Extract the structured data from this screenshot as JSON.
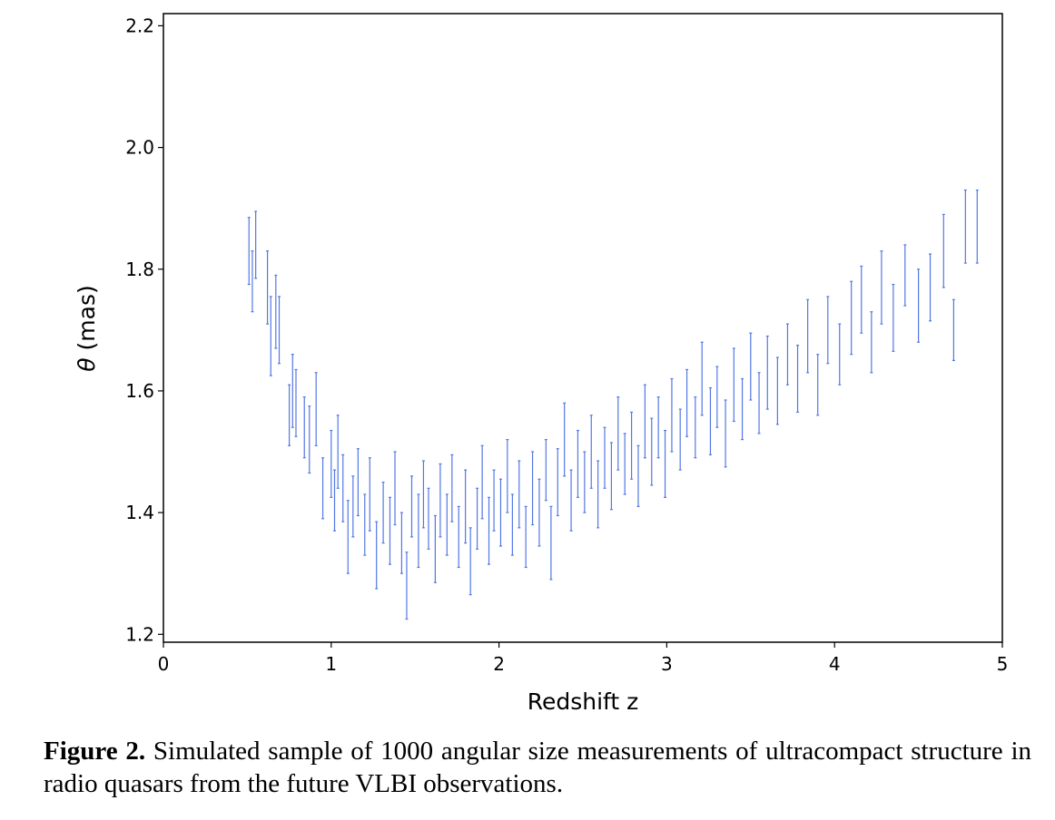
{
  "chart_data": {
    "type": "errorbar",
    "title": "",
    "xlabel": "Redshift z",
    "ylabel_symbol": "θ",
    "ylabel_unit": "(mas)",
    "xlim": [
      0,
      5
    ],
    "ylim": [
      1.187,
      2.22
    ],
    "xticks": [
      "0",
      "1",
      "2",
      "3",
      "4",
      "5"
    ],
    "yticks": [
      "1.2",
      "1.4",
      "1.6",
      "1.8",
      "2.0",
      "2.2"
    ],
    "grid": false,
    "color": "#4169E1",
    "points_note_columns": [
      "z",
      "theta",
      "error"
    ],
    "points": [
      [
        0.51,
        1.83,
        0.055
      ],
      [
        0.53,
        1.78,
        0.05
      ],
      [
        0.55,
        1.84,
        0.055
      ],
      [
        0.62,
        1.77,
        0.06
      ],
      [
        0.64,
        1.69,
        0.065
      ],
      [
        0.67,
        1.73,
        0.06
      ],
      [
        0.69,
        1.7,
        0.055
      ],
      [
        0.75,
        1.56,
        0.05
      ],
      [
        0.77,
        1.6,
        0.06
      ],
      [
        0.79,
        1.58,
        0.055
      ],
      [
        0.84,
        1.54,
        0.05
      ],
      [
        0.87,
        1.52,
        0.055
      ],
      [
        0.91,
        1.57,
        0.06
      ],
      [
        0.95,
        1.44,
        0.05
      ],
      [
        1.0,
        1.48,
        0.055
      ],
      [
        1.02,
        1.42,
        0.05
      ],
      [
        1.04,
        1.5,
        0.06
      ],
      [
        1.07,
        1.44,
        0.055
      ],
      [
        1.1,
        1.36,
        0.06
      ],
      [
        1.13,
        1.41,
        0.05
      ],
      [
        1.16,
        1.45,
        0.055
      ],
      [
        1.2,
        1.38,
        0.05
      ],
      [
        1.23,
        1.43,
        0.06
      ],
      [
        1.27,
        1.33,
        0.055
      ],
      [
        1.31,
        1.4,
        0.05
      ],
      [
        1.35,
        1.37,
        0.055
      ],
      [
        1.38,
        1.44,
        0.06
      ],
      [
        1.42,
        1.35,
        0.05
      ],
      [
        1.45,
        1.28,
        0.055
      ],
      [
        1.48,
        1.41,
        0.05
      ],
      [
        1.52,
        1.37,
        0.06
      ],
      [
        1.55,
        1.43,
        0.055
      ],
      [
        1.58,
        1.39,
        0.05
      ],
      [
        1.62,
        1.34,
        0.055
      ],
      [
        1.65,
        1.42,
        0.06
      ],
      [
        1.69,
        1.38,
        0.05
      ],
      [
        1.72,
        1.44,
        0.055
      ],
      [
        1.76,
        1.36,
        0.05
      ],
      [
        1.8,
        1.41,
        0.06
      ],
      [
        1.83,
        1.32,
        0.055
      ],
      [
        1.87,
        1.39,
        0.05
      ],
      [
        1.9,
        1.45,
        0.06
      ],
      [
        1.94,
        1.37,
        0.055
      ],
      [
        1.97,
        1.42,
        0.05
      ],
      [
        2.01,
        1.4,
        0.055
      ],
      [
        2.05,
        1.46,
        0.06
      ],
      [
        2.08,
        1.38,
        0.05
      ],
      [
        2.12,
        1.43,
        0.055
      ],
      [
        2.16,
        1.36,
        0.05
      ],
      [
        2.2,
        1.44,
        0.06
      ],
      [
        2.24,
        1.4,
        0.055
      ],
      [
        2.28,
        1.47,
        0.05
      ],
      [
        2.31,
        1.35,
        0.06
      ],
      [
        2.35,
        1.45,
        0.055
      ],
      [
        2.39,
        1.52,
        0.06
      ],
      [
        2.43,
        1.42,
        0.05
      ],
      [
        2.47,
        1.48,
        0.055
      ],
      [
        2.51,
        1.45,
        0.05
      ],
      [
        2.55,
        1.5,
        0.06
      ],
      [
        2.59,
        1.43,
        0.055
      ],
      [
        2.63,
        1.49,
        0.05
      ],
      [
        2.67,
        1.46,
        0.055
      ],
      [
        2.71,
        1.53,
        0.06
      ],
      [
        2.75,
        1.48,
        0.05
      ],
      [
        2.79,
        1.51,
        0.055
      ],
      [
        2.83,
        1.46,
        0.05
      ],
      [
        2.87,
        1.55,
        0.06
      ],
      [
        2.91,
        1.5,
        0.055
      ],
      [
        2.95,
        1.54,
        0.05
      ],
      [
        2.99,
        1.48,
        0.055
      ],
      [
        3.03,
        1.56,
        0.06
      ],
      [
        3.08,
        1.52,
        0.05
      ],
      [
        3.12,
        1.58,
        0.055
      ],
      [
        3.17,
        1.54,
        0.05
      ],
      [
        3.21,
        1.62,
        0.06
      ],
      [
        3.26,
        1.55,
        0.055
      ],
      [
        3.3,
        1.59,
        0.05
      ],
      [
        3.35,
        1.53,
        0.055
      ],
      [
        3.4,
        1.61,
        0.06
      ],
      [
        3.45,
        1.57,
        0.05
      ],
      [
        3.5,
        1.64,
        0.055
      ],
      [
        3.55,
        1.58,
        0.05
      ],
      [
        3.6,
        1.63,
        0.06
      ],
      [
        3.66,
        1.6,
        0.055
      ],
      [
        3.72,
        1.66,
        0.05
      ],
      [
        3.78,
        1.62,
        0.055
      ],
      [
        3.84,
        1.69,
        0.06
      ],
      [
        3.9,
        1.61,
        0.05
      ],
      [
        3.96,
        1.7,
        0.055
      ],
      [
        4.03,
        1.66,
        0.05
      ],
      [
        4.1,
        1.72,
        0.06
      ],
      [
        4.16,
        1.75,
        0.055
      ],
      [
        4.22,
        1.68,
        0.05
      ],
      [
        4.28,
        1.77,
        0.06
      ],
      [
        4.35,
        1.72,
        0.055
      ],
      [
        4.42,
        1.79,
        0.05
      ],
      [
        4.5,
        1.74,
        0.06
      ],
      [
        4.57,
        1.77,
        0.055
      ],
      [
        4.65,
        1.83,
        0.06
      ],
      [
        4.71,
        1.7,
        0.05
      ],
      [
        4.78,
        1.87,
        0.06
      ],
      [
        4.85,
        1.87,
        0.06
      ]
    ]
  },
  "caption": {
    "label": "Figure 2.",
    "text": "Simulated sample of 1000 angular size measurements of ultracompact structure in radio quasars from the future VLBI observations."
  }
}
